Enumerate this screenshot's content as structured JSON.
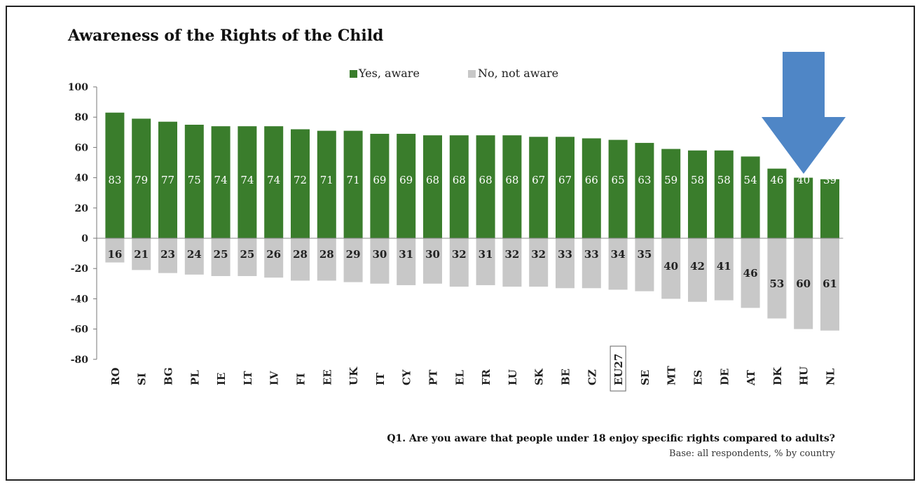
{
  "chart_data": {
    "type": "bar",
    "title": "Awareness of the Rights of the Child",
    "categories": [
      "RO",
      "SI",
      "BG",
      "PL",
      "IE",
      "LT",
      "LV",
      "FI",
      "EE",
      "UK",
      "IT",
      "CY",
      "PT",
      "EL",
      "FR",
      "LU",
      "SK",
      "BE",
      "CZ",
      "EU27",
      "SE",
      "MT",
      "ES",
      "DE",
      "AT",
      "DK",
      "HU",
      "NL"
    ],
    "category_display": [
      "RO",
      "SI",
      "BG",
      "PL",
      "IE",
      "LT",
      "LV",
      "FI",
      "EE",
      "UK",
      "IT",
      "CY",
      "PT",
      "EL",
      "FR",
      "LU",
      "SK",
      "BE",
      "CZ",
      "EU27",
      "SE",
      "MT",
      "ES",
      "DE",
      "AT",
      "DK",
      "HU",
      "NL"
    ],
    "highlight_category": "EU27",
    "series": [
      {
        "name": "Yes, aware",
        "color": "#3a7d2c",
        "values": [
          83,
          79,
          77,
          75,
          74,
          74,
          74,
          72,
          71,
          71,
          69,
          69,
          68,
          68,
          68,
          68,
          67,
          67,
          66,
          65,
          63,
          59,
          58,
          58,
          54,
          46,
          40,
          39
        ]
      },
      {
        "name": "No, not aware",
        "color": "#c8c8c8",
        "values": [
          16,
          21,
          23,
          24,
          25,
          25,
          26,
          28,
          28,
          29,
          30,
          31,
          30,
          32,
          31,
          32,
          32,
          33,
          33,
          34,
          35,
          40,
          42,
          41,
          46,
          53,
          60,
          61
        ]
      }
    ],
    "yticks": [
      100,
      80,
      60,
      40,
      20,
      0,
      -20,
      -40,
      -60,
      -80
    ],
    "ylim": [
      -80,
      100
    ],
    "legend_position": "top-center",
    "grid": false,
    "annotation": {
      "type": "arrow",
      "color": "#4f86c6",
      "points_to": "HU"
    }
  },
  "footer": {
    "question": "Q1. Are you aware that people under 18 enjoy specific rights compared to adults?",
    "base": "Base: all respondents, % by country"
  }
}
